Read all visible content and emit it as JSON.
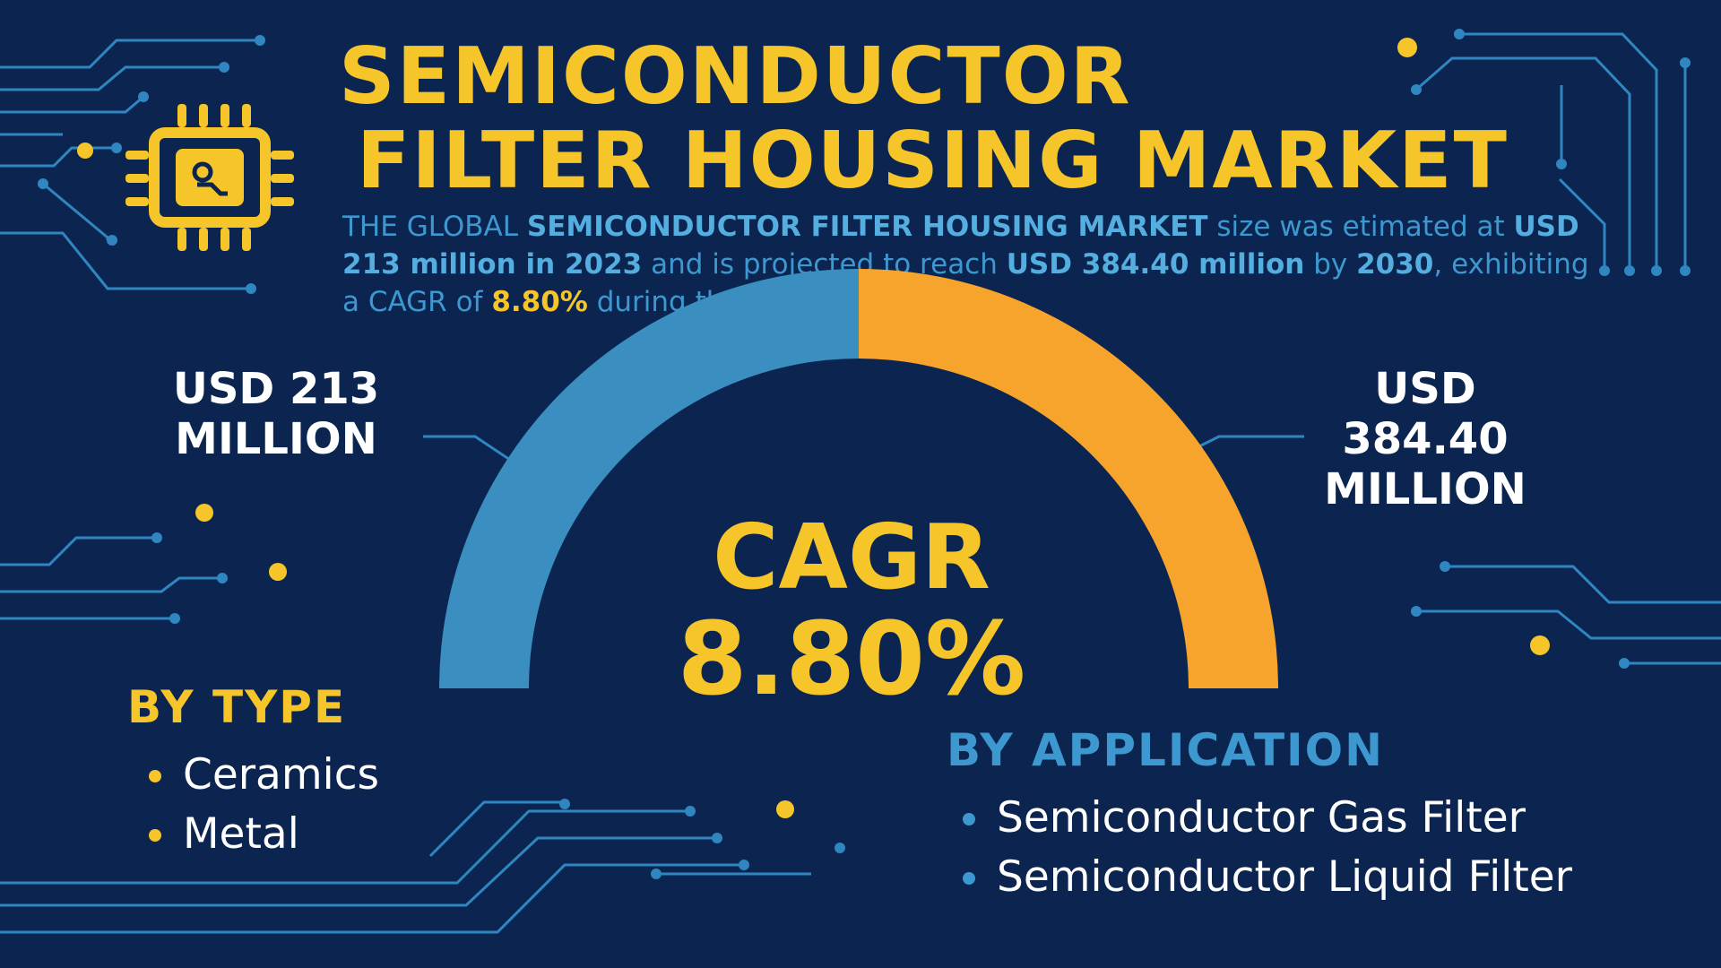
{
  "title": {
    "line1": "SEMICONDUCTOR",
    "line2": "FILTER HOUSING MARKET"
  },
  "intro": {
    "p1": "THE GLOBAL ",
    "p2": "SEMICONDUCTOR FILTER HOUSING MARKET",
    "p3": " size was etimated at ",
    "p4": "USD 213 million in 2023",
    "p5": " and is projected to reach ",
    "p6": "USD 384.40 million",
    "p7": " by ",
    "p8": "2030",
    "p9": ", exhibiting a CAGR of ",
    "p10": "8.80%",
    "p11": " during the forecast pefiod."
  },
  "start_value": {
    "line1": "USD 213",
    "line2": "MILLION"
  },
  "end_value": {
    "line1": "USD",
    "line2": "384.40",
    "line3": "MILLION"
  },
  "cagr": {
    "label": "CAGR",
    "value": "8.80%"
  },
  "gauge": {
    "left_share": 0.5,
    "left_color": "#3a8fc0",
    "right_color": "#f7a42c"
  },
  "by_type": {
    "title": "BY TYPE",
    "items": [
      "Ceramics",
      "Metal"
    ]
  },
  "by_application": {
    "title": "BY APPLICATION",
    "items": [
      "Semiconductor Gas Filter",
      "Semiconductor Liquid Filter"
    ]
  },
  "colors": {
    "background": "#0b2550",
    "accent_yellow": "#f6c52a",
    "accent_blue": "#3d98cf",
    "text_white": "#ffffff"
  },
  "icons": {
    "chip": "chip-icon"
  }
}
